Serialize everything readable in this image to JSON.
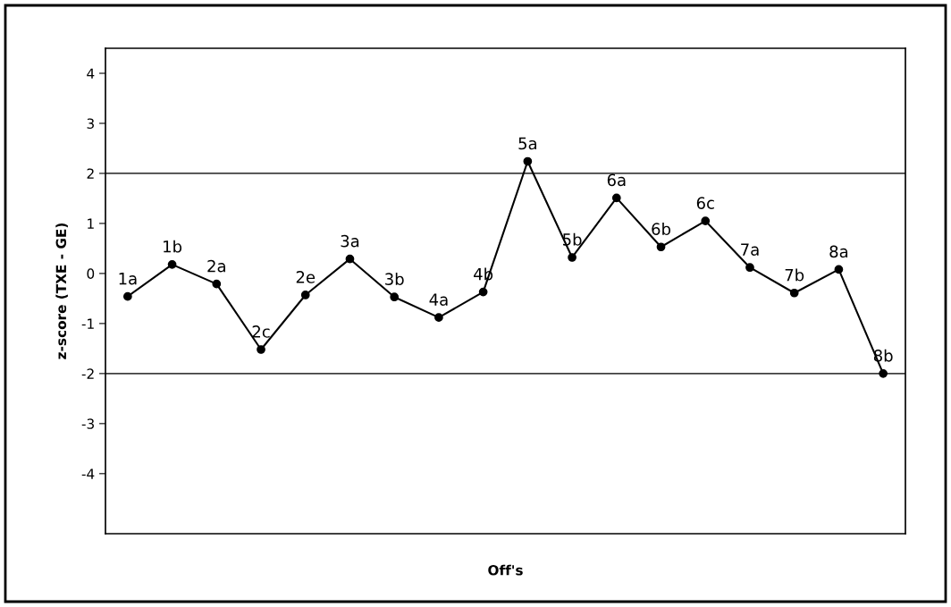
{
  "chart_data": {
    "type": "line",
    "ylabel": "z-score (TXE - GE)",
    "xlabel": "Off's",
    "categories": [
      "1a",
      "1b",
      "2a",
      "2c",
      "2e",
      "3a",
      "3b",
      "4a",
      "4b",
      "5a",
      "5b",
      "6a",
      "6b",
      "6c",
      "7a",
      "7b",
      "8a",
      "8b"
    ],
    "series": [
      {
        "color": "#000000",
        "values": [
          -0.46,
          0.18,
          -0.21,
          -1.52,
          -0.43,
          0.29,
          -0.47,
          -0.88,
          -0.37,
          2.24,
          0.32,
          1.51,
          0.53,
          1.05,
          0.12,
          -0.39,
          0.08,
          -2.0
        ]
      }
    ],
    "ylim": [
      -5.2,
      4.5
    ],
    "yticks": [
      -4,
      -3,
      -2,
      -1,
      0,
      1,
      2,
      3,
      4
    ],
    "ref_lines": [
      {
        "axis": "y",
        "value": 2,
        "color": "#404040"
      },
      {
        "axis": "y",
        "value": -2,
        "color": "#404040"
      }
    ],
    "marker": "circle",
    "line_style": "solid",
    "grid": false,
    "legend": false
  }
}
